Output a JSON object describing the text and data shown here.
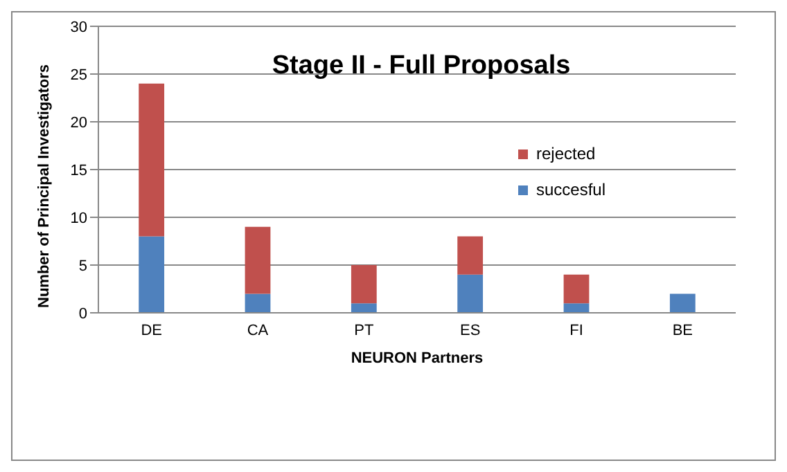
{
  "chart_data": {
    "type": "bar",
    "title": "Stage II - Full Proposals",
    "xlabel": "NEURON Partners",
    "ylabel": "Number of Principal Investigators",
    "categories": [
      "DE",
      "CA",
      "PT",
      "ES",
      "FI",
      "BE"
    ],
    "series": [
      {
        "name": "succesful",
        "color": "#4f81bd",
        "values": [
          8,
          2,
          1,
          4,
          1,
          2
        ]
      },
      {
        "name": "rejected",
        "color": "#c0504d",
        "values": [
          16,
          7,
          4,
          4,
          3,
          0
        ]
      }
    ],
    "stacked": true,
    "ylim": [
      0,
      30
    ],
    "yticks": [
      0,
      5,
      10,
      15,
      20,
      25,
      30
    ],
    "grid": "y",
    "legend": "right"
  }
}
